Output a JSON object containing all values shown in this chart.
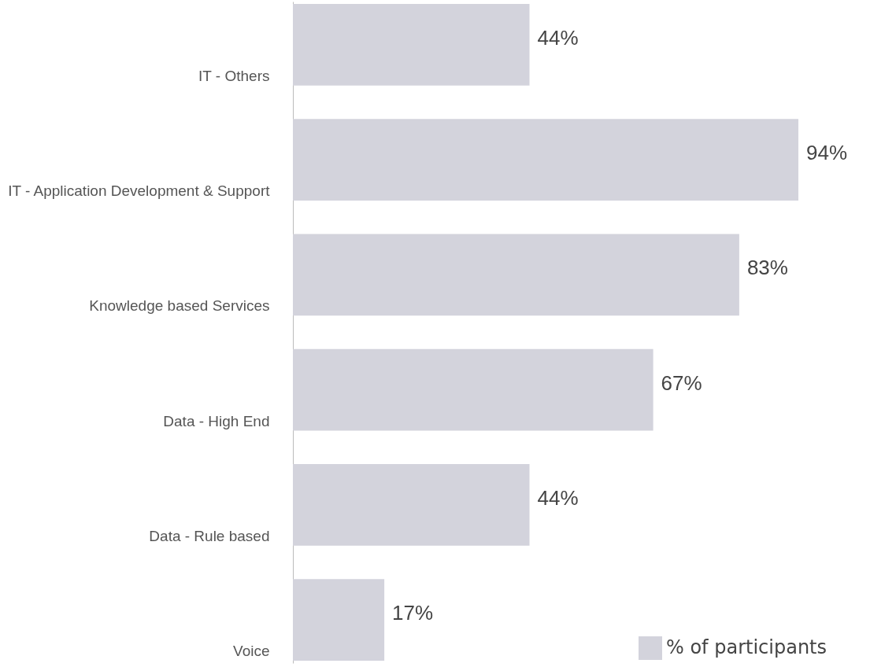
{
  "chart_data": {
    "type": "bar",
    "orientation": "horizontal",
    "categories": [
      "IT - Others",
      "IT - Application Development & Support",
      "Knowledge based Services",
      "Data - High End",
      "Data - Rule based",
      "Voice"
    ],
    "series": [
      {
        "name": "% of participants",
        "color": "#d3d3dc",
        "values": [
          44,
          94,
          83,
          67,
          44,
          17
        ],
        "value_labels": [
          "44%",
          "94%",
          "83%",
          "67%",
          "44%",
          "17%"
        ]
      }
    ],
    "grid": false,
    "legend": "bottom right"
  }
}
